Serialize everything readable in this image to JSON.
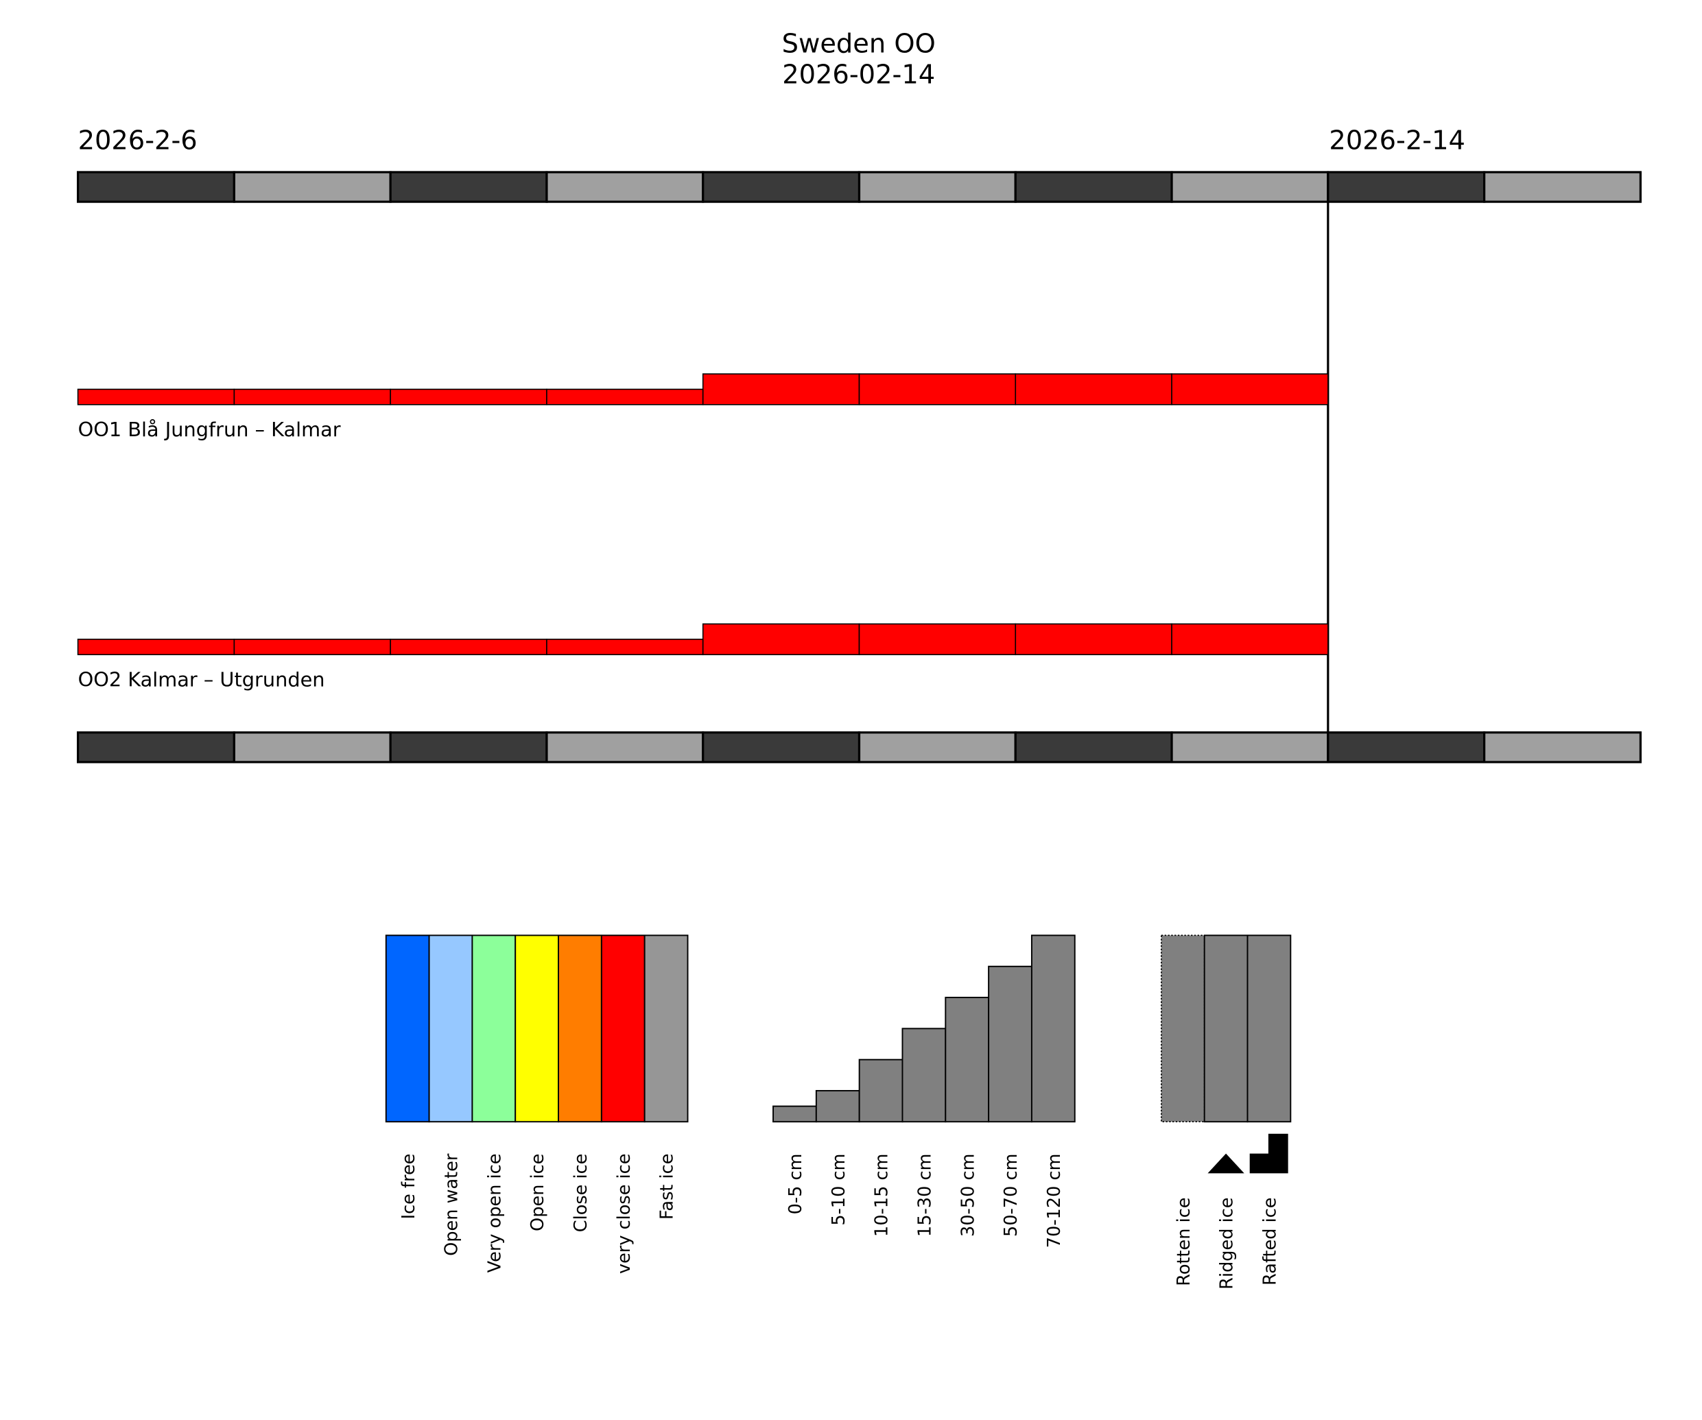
{
  "chart_data": {
    "type": "timeline",
    "title": "Sweden OO",
    "subtitle": "2026-02-14",
    "start_label": "2026-2-6",
    "current_label": "2026-2-14",
    "timeline_days": 10,
    "current_day_index": 8,
    "day_colors": [
      "#3a3a3a",
      "#a0a0a0"
    ],
    "routes": [
      {
        "name": "OO1 Blå Jungfrun – Kalmar",
        "concentration": [
          "very close ice",
          "very close ice",
          "very close ice",
          "very close ice",
          "very close ice",
          "very close ice",
          "very close ice",
          "very close ice"
        ],
        "thickness": [
          "0-5 cm",
          "0-5 cm",
          "0-5 cm",
          "0-5 cm",
          "5-10 cm",
          "5-10 cm",
          "5-10 cm",
          "5-10 cm"
        ]
      },
      {
        "name": "OO2 Kalmar – Utgrunden",
        "concentration": [
          "very close ice",
          "very close ice",
          "very close ice",
          "very close ice",
          "very close ice",
          "very close ice",
          "very close ice",
          "very close ice"
        ],
        "thickness": [
          "0-5 cm",
          "0-5 cm",
          "0-5 cm",
          "0-5 cm",
          "5-10 cm",
          "5-10 cm",
          "5-10 cm",
          "5-10 cm"
        ]
      }
    ],
    "concentration_legend": [
      {
        "label": "Ice free",
        "color": "#0066ff"
      },
      {
        "label": "Open water",
        "color": "#96c8ff"
      },
      {
        "label": "Very open ice",
        "color": "#8cff9a"
      },
      {
        "label": "Open ice",
        "color": "#ffff00"
      },
      {
        "label": "Close ice",
        "color": "#ff7d00"
      },
      {
        "label": "very close ice",
        "color": "#ff0000"
      },
      {
        "label": "Fast ice",
        "color": "#969696"
      }
    ],
    "thickness_legend": [
      {
        "label": "0-5 cm",
        "level": 1
      },
      {
        "label": "5-10 cm",
        "level": 2
      },
      {
        "label": "10-15 cm",
        "level": 4
      },
      {
        "label": "15-30 cm",
        "level": 6
      },
      {
        "label": "30-50 cm",
        "level": 8
      },
      {
        "label": "50-70 cm",
        "level": 10
      },
      {
        "label": "70-120 cm",
        "level": 12
      }
    ],
    "type_legend": [
      {
        "label": "Rotten ice",
        "symbol": "dotted-border"
      },
      {
        "label": "Ridged ice",
        "symbol": "triangle-icon"
      },
      {
        "label": "Rafted ice",
        "symbol": "step-icon"
      }
    ],
    "legend_fill": "#808080"
  }
}
